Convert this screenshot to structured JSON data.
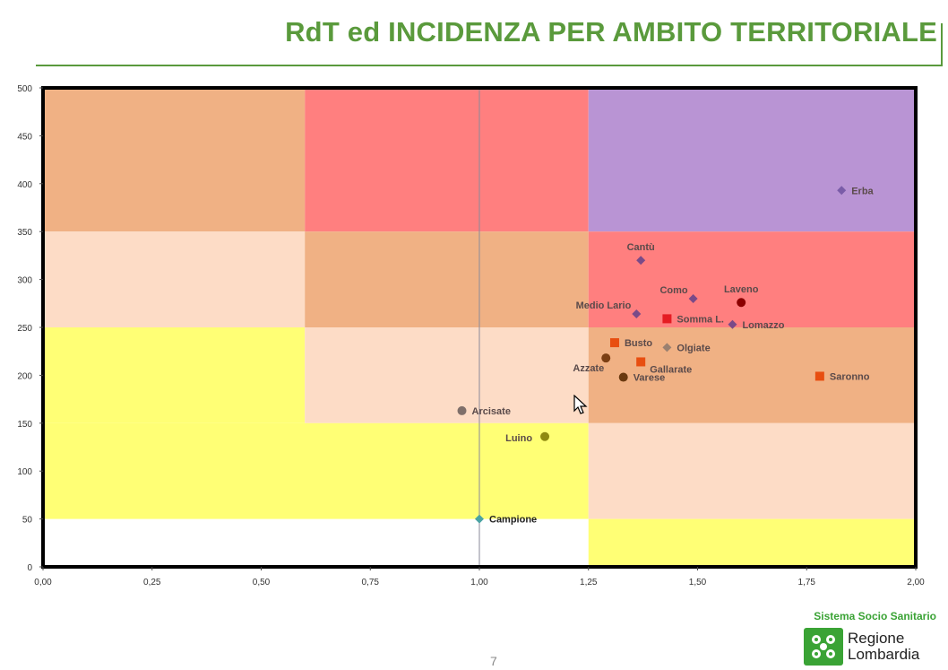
{
  "page": {
    "title": "RdT ed INCIDENZA PER AMBITO TERRITORIALE",
    "page_number": "7",
    "title_color": "#5a9a3c"
  },
  "brand": {
    "system": "Sistema Socio Sanitario",
    "name_line1": "Regione",
    "name_line2": "Lombardia",
    "color": "#3aa335"
  },
  "chart_data": {
    "type": "scatter",
    "title": "",
    "xlabel": "",
    "ylabel": "",
    "xlim": [
      0,
      2
    ],
    "ylim": [
      0,
      500
    ],
    "x_ticks": [
      "0,00",
      "0,25",
      "0,50",
      "0,75",
      "1,00",
      "1,25",
      "1,50",
      "1,75",
      "2,00"
    ],
    "x_tick_values": [
      0,
      0.25,
      0.5,
      0.75,
      1,
      1.25,
      1.5,
      1.75,
      2
    ],
    "y_ticks": [
      "0",
      "50",
      "100",
      "150",
      "200",
      "250",
      "300",
      "350",
      "400",
      "450",
      "500"
    ],
    "y_tick_values": [
      0,
      50,
      100,
      150,
      200,
      250,
      300,
      350,
      400,
      450,
      500
    ],
    "reference_line_x": 1.0,
    "zones": [
      {
        "x": [
          0,
          0.6
        ],
        "y": [
          350,
          500
        ],
        "color": "#f0b184"
      },
      {
        "x": [
          0.6,
          1.25
        ],
        "y": [
          350,
          500
        ],
        "color": "#ff7f7f"
      },
      {
        "x": [
          1.25,
          2
        ],
        "y": [
          350,
          500
        ],
        "color": "#b994d4"
      },
      {
        "x": [
          0,
          0.6
        ],
        "y": [
          250,
          350
        ],
        "color": "#fddcc6"
      },
      {
        "x": [
          0.6,
          1.25
        ],
        "y": [
          250,
          350
        ],
        "color": "#f0b184"
      },
      {
        "x": [
          1.25,
          2
        ],
        "y": [
          250,
          350
        ],
        "color": "#ff7f7f"
      },
      {
        "x": [
          0,
          0.6
        ],
        "y": [
          150,
          250
        ],
        "color": "#ffff75"
      },
      {
        "x": [
          0.6,
          1.25
        ],
        "y": [
          150,
          250
        ],
        "color": "#fddcc6"
      },
      {
        "x": [
          1.25,
          2
        ],
        "y": [
          150,
          250
        ],
        "color": "#f0b184"
      },
      {
        "x": [
          0,
          1.25
        ],
        "y": [
          50,
          150
        ],
        "color": "#ffff75"
      },
      {
        "x": [
          1.25,
          2
        ],
        "y": [
          50,
          150
        ],
        "color": "#fddcc6"
      },
      {
        "x": [
          1.25,
          2
        ],
        "y": [
          0,
          50
        ],
        "color": "#ffff75"
      }
    ],
    "points": [
      {
        "label": "Erba",
        "x": 1.83,
        "y": 393,
        "marker": "diamond",
        "color": "#7a5ca8",
        "label_pos": "right"
      },
      {
        "label": "Cantù",
        "x": 1.37,
        "y": 320,
        "marker": "diamond",
        "color": "#7a4a88",
        "label_pos": "above"
      },
      {
        "label": "Como",
        "x": 1.49,
        "y": 280,
        "marker": "diamond",
        "color": "#7a4a88",
        "label_pos": "above-left"
      },
      {
        "label": "Laveno",
        "x": 1.6,
        "y": 276,
        "marker": "circle",
        "color": "#8b0000",
        "label_pos": "above"
      },
      {
        "label": "Medio Lario",
        "x": 1.36,
        "y": 264,
        "marker": "diamond",
        "color": "#7a4a88",
        "label_pos": "above-left"
      },
      {
        "label": "Somma L.",
        "x": 1.43,
        "y": 259,
        "marker": "square",
        "color": "#e51c23",
        "label_pos": "right"
      },
      {
        "label": "Lomazzo",
        "x": 1.58,
        "y": 253,
        "marker": "diamond",
        "color": "#7a4a88",
        "label_pos": "right"
      },
      {
        "label": "Busto",
        "x": 1.31,
        "y": 234,
        "marker": "square",
        "color": "#e84e10",
        "label_pos": "right"
      },
      {
        "label": "Olgiate",
        "x": 1.43,
        "y": 229,
        "marker": "diamond",
        "color": "#9a8070",
        "label_pos": "right"
      },
      {
        "label": "Azzate",
        "x": 1.29,
        "y": 218,
        "marker": "circle",
        "color": "#7b3f14",
        "label_pos": "below-left"
      },
      {
        "label": "Gallarate",
        "x": 1.37,
        "y": 214,
        "marker": "square",
        "color": "#e84e10",
        "label_pos": "below-right"
      },
      {
        "label": "Saronno",
        "x": 1.78,
        "y": 199,
        "marker": "square",
        "color": "#e84e10",
        "label_pos": "right"
      },
      {
        "label": "Varese",
        "x": 1.33,
        "y": 198,
        "marker": "circle",
        "color": "#6b3a10",
        "label_pos": "right"
      },
      {
        "label": "Arcisate",
        "x": 0.96,
        "y": 163,
        "marker": "circle",
        "color": "#7f6f6a",
        "label_pos": "right"
      },
      {
        "label": "Luino",
        "x": 1.15,
        "y": 136,
        "marker": "circle",
        "color": "#8f8a10",
        "label_pos": "left"
      },
      {
        "label": "Campione",
        "x": 1.0,
        "y": 50,
        "marker": "diamond",
        "color": "#4aa3a3",
        "label_pos": "right"
      }
    ]
  }
}
